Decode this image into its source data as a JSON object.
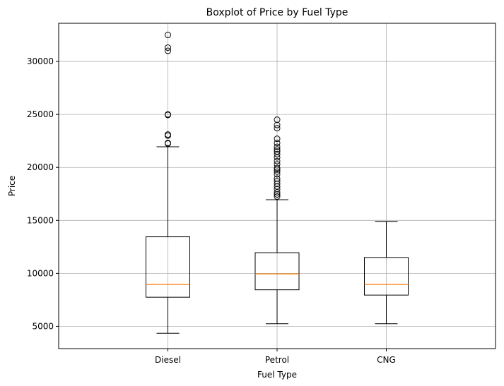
{
  "chart_data": {
    "type": "boxplot",
    "title": "Boxplot of Price by Fuel Type",
    "xlabel": "Fuel Type",
    "ylabel": "Price",
    "categories": [
      "Diesel",
      "Petrol",
      "CNG"
    ],
    "ylim": [
      2900,
      33600
    ],
    "yticks": [
      5000,
      10000,
      15000,
      20000,
      25000,
      30000
    ],
    "grid": true,
    "colors": {
      "box": "#000000",
      "median": "#ff7f0e",
      "grid": "#b0b0b0"
    },
    "boxes": [
      {
        "category": "Diesel",
        "whisker_low": 4350,
        "q1": 7750,
        "median": 8950,
        "q3": 13450,
        "whisker_high": 21950,
        "outliers": [
          22250,
          22300,
          23000,
          23100,
          24950,
          25000,
          31000,
          31300,
          32500
        ]
      },
      {
        "category": "Petrol",
        "whisker_low": 5250,
        "q1": 8450,
        "median": 9950,
        "q3": 11950,
        "whisker_high": 16950,
        "outliers": [
          17250,
          17450,
          17650,
          17950,
          18200,
          18450,
          18700,
          18950,
          19350,
          19600,
          19800,
          19950,
          20300,
          20600,
          20950,
          21250,
          21500,
          21700,
          21950,
          22300,
          22700,
          23700,
          24000,
          24500
        ]
      },
      {
        "category": "CNG",
        "whisker_low": 5250,
        "q1": 7950,
        "median": 8950,
        "q3": 11500,
        "whisker_high": 14900,
        "outliers": []
      }
    ]
  }
}
